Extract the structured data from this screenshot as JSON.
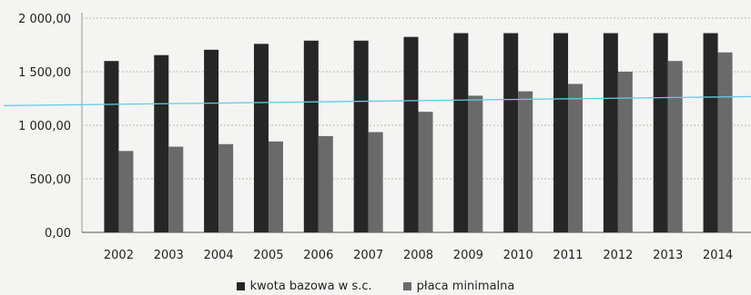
{
  "chart_data": {
    "type": "bar",
    "categories": [
      "2002",
      "2003",
      "2004",
      "2005",
      "2006",
      "2007",
      "2008",
      "2009",
      "2010",
      "2011",
      "2012",
      "2013",
      "2014"
    ],
    "series": [
      {
        "name": "kwota bazowa w s.c.",
        "color": "#262626",
        "values": [
          1600,
          1655,
          1705,
          1760,
          1790,
          1790,
          1825,
          1860,
          1860,
          1860,
          1860,
          1860,
          1860
        ]
      },
      {
        "name": "płaca minimalna",
        "color": "#6a6a6a",
        "values": [
          760,
          800,
          824,
          849,
          899,
          936,
          1126,
          1276,
          1317,
          1386,
          1500,
          1600,
          1680
        ]
      }
    ],
    "reference_line": {
      "value": 1200,
      "color": "#5fcde0"
    },
    "ylim": [
      0,
      2000
    ],
    "yticks": [
      {
        "value": 0,
        "label": "0,00"
      },
      {
        "value": 500,
        "label": "500,00"
      },
      {
        "value": 1000,
        "label": "1 000,00"
      },
      {
        "value": 1500,
        "label": "1 500,00"
      },
      {
        "value": 2000,
        "label": "2 000,00"
      }
    ],
    "grid": true,
    "legend_position": "bottom"
  }
}
